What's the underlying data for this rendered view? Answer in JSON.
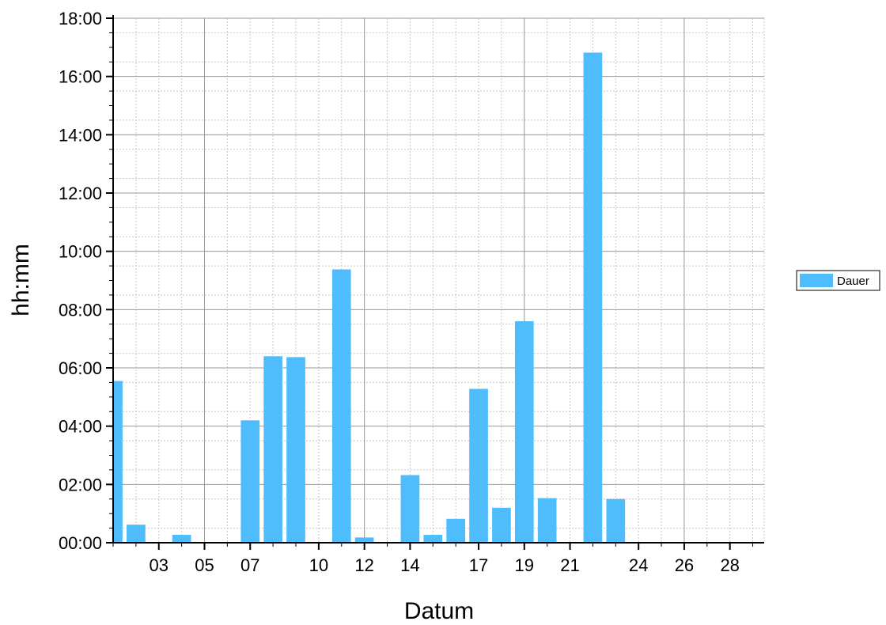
{
  "chart_data": {
    "type": "bar",
    "xlabel": "Datum",
    "ylabel": "hh:mm",
    "x_tick_labels": [
      "03",
      "05",
      "07",
      "10",
      "12",
      "14",
      "17",
      "19",
      "21",
      "24",
      "26",
      "28"
    ],
    "x_tick_days": [
      3,
      5,
      7,
      10,
      12,
      14,
      17,
      19,
      21,
      24,
      26,
      28
    ],
    "x_range_days": [
      1,
      29.5
    ],
    "y_tick_labels": [
      "00:00",
      "02:00",
      "04:00",
      "06:00",
      "08:00",
      "10:00",
      "12:00",
      "14:00",
      "16:00",
      "18:00"
    ],
    "ylim_hours": [
      0,
      18
    ],
    "grid": true,
    "legend_position": "right",
    "series": [
      {
        "name": "Dauer",
        "color": "#4FBDFB",
        "days": [
          1,
          2,
          3,
          4,
          5,
          6,
          7,
          8,
          9,
          10,
          11,
          12,
          13,
          14,
          15,
          16,
          17,
          18,
          19,
          20,
          21,
          22,
          23,
          24,
          25,
          26,
          27,
          28
        ],
        "hours": [
          5.55,
          0.62,
          0,
          0.27,
          0,
          0,
          4.2,
          6.4,
          6.37,
          0,
          9.38,
          0.18,
          0,
          2.32,
          0.27,
          0.82,
          5.28,
          1.2,
          7.6,
          1.53,
          0,
          16.82,
          1.5,
          0,
          0,
          0,
          0,
          0
        ]
      }
    ]
  }
}
